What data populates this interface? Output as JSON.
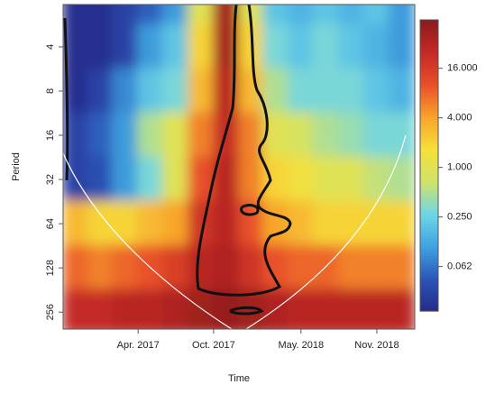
{
  "chart_data": {
    "type": "heatmap",
    "x_label": "Time",
    "y_label": "Period",
    "x": [
      "2016-11",
      "2017-01",
      "2017-03",
      "2017-05",
      "2017-07",
      "2017-09",
      "2017-11",
      "2018-01",
      "2018-03",
      "2018-05",
      "2018-07",
      "2018-09",
      "2018-11",
      "2019-01"
    ],
    "y": [
      2,
      4,
      8,
      16,
      32,
      64,
      128,
      256
    ],
    "z": [
      [
        0.02,
        0.02,
        0.03,
        0.05,
        0.1,
        1,
        40,
        1,
        0.2,
        0.15,
        0.2,
        0.15,
        0.2,
        0.1
      ],
      [
        0.02,
        0.02,
        0.03,
        0.1,
        0.2,
        2,
        40,
        2,
        0.3,
        0.2,
        0.3,
        0.2,
        0.15,
        0.1
      ],
      [
        0.02,
        0.03,
        0.08,
        0.2,
        0.3,
        3,
        30,
        3,
        0.5,
        0.3,
        0.3,
        0.3,
        0.2,
        0.15
      ],
      [
        0.03,
        0.05,
        0.1,
        0.5,
        1,
        6,
        25,
        6,
        1,
        0.8,
        0.5,
        0.4,
        0.3,
        0.3
      ],
      [
        0.03,
        0.04,
        0.1,
        0.3,
        1,
        10,
        30,
        6,
        2,
        1.5,
        1,
        1,
        0.6,
        0.5
      ],
      [
        3,
        2,
        2,
        3,
        4,
        20,
        30,
        10,
        4,
        3,
        2,
        2,
        2,
        2
      ],
      [
        8,
        6,
        8,
        10,
        15,
        30,
        35,
        20,
        10,
        8,
        8,
        6,
        6,
        6
      ],
      [
        25,
        25,
        30,
        30,
        35,
        45,
        50,
        45,
        35,
        30,
        30,
        30,
        30,
        30
      ]
    ],
    "xlim": [
      "2016-10",
      "2019-02"
    ],
    "xticks": [
      {
        "value": "2017-04",
        "label": "Apr. 2017"
      },
      {
        "value": "2017-10",
        "label": "Oct. 2017"
      },
      {
        "value": "2018-05",
        "label": "May. 2018"
      },
      {
        "value": "2018-11",
        "label": "Nov. 2018"
      }
    ],
    "ylim": [
      2.06,
      334
    ],
    "y_log": true,
    "y_reversed": true,
    "yticks": [
      4,
      8,
      16,
      32,
      64,
      128,
      256
    ],
    "zlim": [
      0.018,
      62
    ],
    "z_log": true,
    "zticks": [
      {
        "value": 0.0625,
        "label": "0.062"
      },
      {
        "value": 0.25,
        "label": "0.250"
      },
      {
        "value": 1,
        "label": "1.000"
      },
      {
        "value": 4,
        "label": "4.000"
      },
      {
        "value": 16,
        "label": "16.000"
      }
    ],
    "colors": [
      "#262a8a",
      "#2b55b8",
      "#3fa3e0",
      "#6fd6e6",
      "#cfe36a",
      "#f6e03a",
      "#f7a42c",
      "#e8502a",
      "#c42a25",
      "#8a1b1b"
    ]
  }
}
